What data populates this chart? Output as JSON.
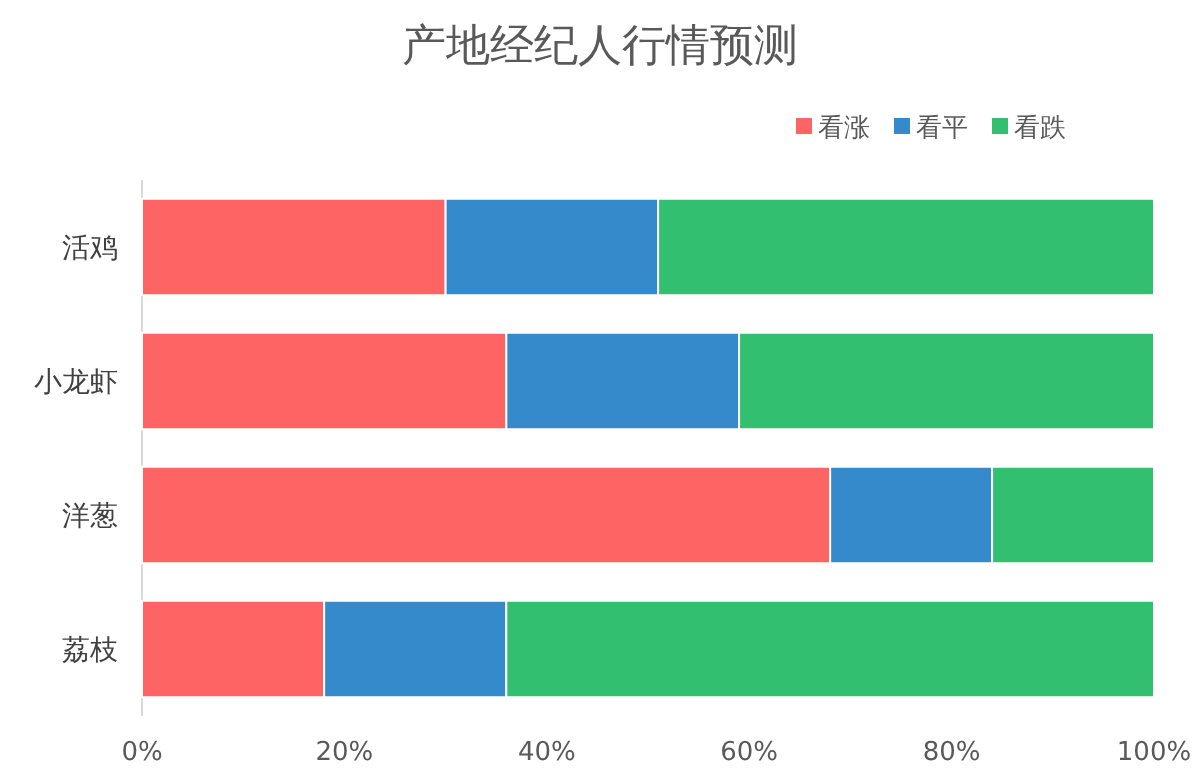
{
  "chart_data": {
    "type": "bar",
    "orientation": "horizontal",
    "stacked": true,
    "title": "产地经纪人行情预测",
    "categories": [
      "活鸡",
      "小龙虾",
      "洋葱",
      "荔枝"
    ],
    "series": [
      {
        "name": "看涨",
        "color": "#ff6464",
        "values": [
          30,
          36,
          68,
          18
        ]
      },
      {
        "name": "看平",
        "color": "#348acb",
        "values": [
          21,
          23,
          16,
          18
        ]
      },
      {
        "name": "看跌",
        "color": "#33bf70",
        "values": [
          49,
          41,
          16,
          64
        ]
      }
    ],
    "xlim": [
      0,
      100
    ],
    "xticks": [
      {
        "value": 0,
        "label": "0%"
      },
      {
        "value": 20,
        "label": "20%"
      },
      {
        "value": 40,
        "label": "40%"
      },
      {
        "value": 60,
        "label": "60%"
      },
      {
        "value": 80,
        "label": "80%"
      },
      {
        "value": 100,
        "label": "100%"
      }
    ],
    "legend": "top right"
  }
}
